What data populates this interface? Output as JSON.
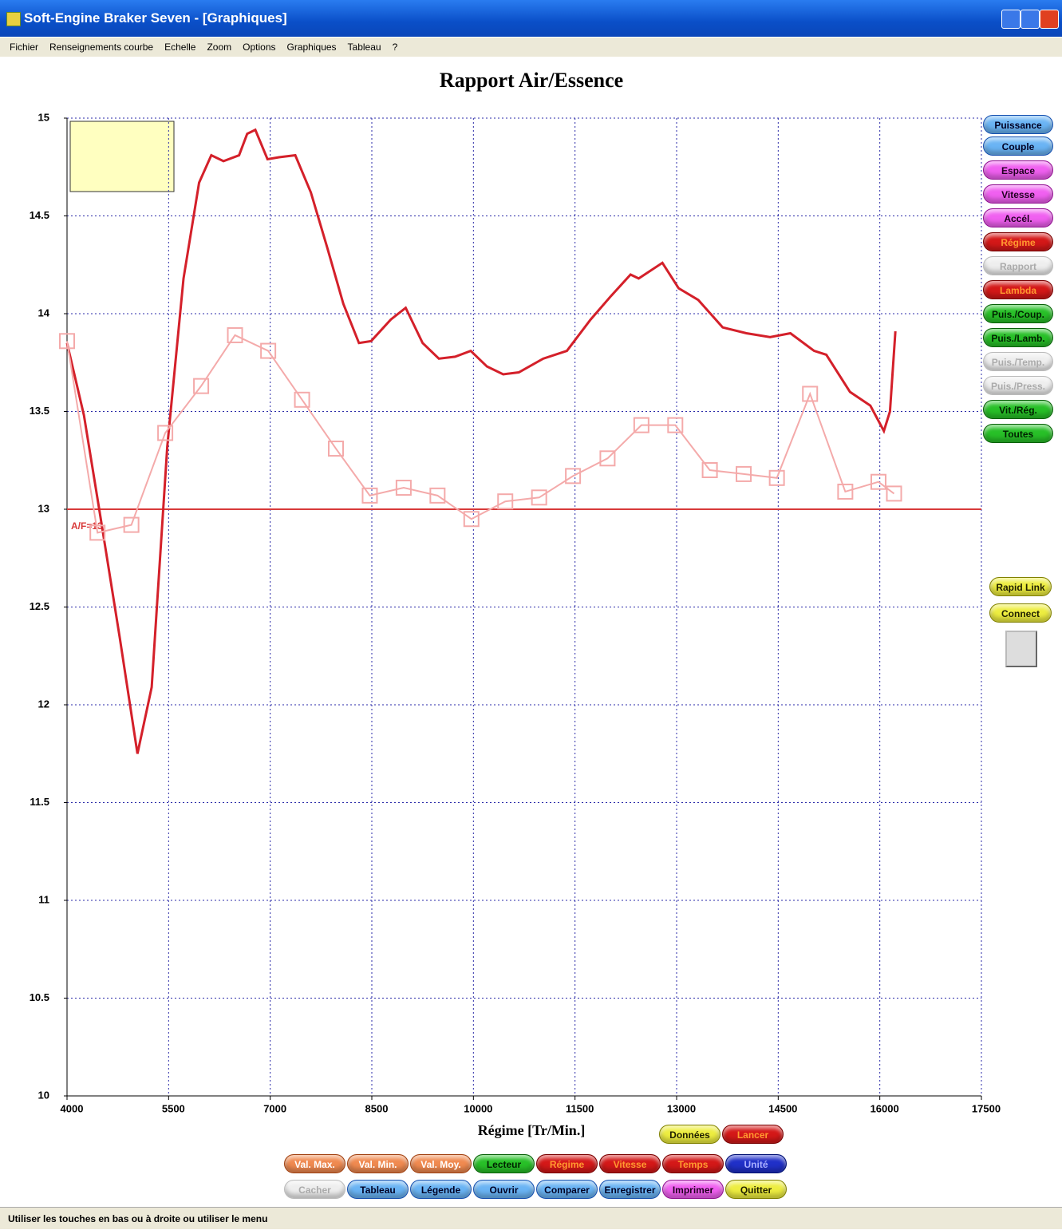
{
  "window": {
    "title": "Soft-Engine Braker Seven - [Graphiques]"
  },
  "menu": [
    "Fichier",
    "Renseignements courbe",
    "Echelle",
    "Zoom",
    "Options",
    "Graphiques",
    "Tableau",
    "?"
  ],
  "chart_data": {
    "type": "line",
    "title": "Rapport Air/Essence",
    "x_label": "Régime [Tr/Min.]",
    "xlim": [
      4000,
      17500
    ],
    "xticks": [
      4000,
      5500,
      7000,
      8500,
      10000,
      11500,
      13000,
      14500,
      16000,
      17500
    ],
    "ylim": [
      10,
      15
    ],
    "yticks": [
      10,
      10.5,
      11,
      11.5,
      12,
      12.5,
      13,
      13.5,
      14,
      14.5,
      15
    ],
    "grid": true,
    "reference": {
      "value": 13,
      "label": "A/F=13",
      "color": "#d83a3a"
    },
    "series": [
      {
        "color": "#d4202a",
        "marker": false,
        "x": [
          4000,
          4250,
          4480,
          4780,
          5040,
          5250,
          5480,
          5720,
          5950,
          6130,
          6310,
          6540,
          6660,
          6780,
          6960,
          7130,
          7370,
          7600,
          7840,
          8080,
          8310,
          8490,
          8780,
          9000,
          9250,
          9490,
          9730,
          9960,
          10200,
          10440,
          10670,
          11030,
          11380,
          11730,
          12030,
          12320,
          12440,
          12790,
          13030,
          13320,
          13680,
          14030,
          14380,
          14680,
          15030,
          15210,
          15560,
          15860,
          16060,
          16150,
          16230
        ],
        "values": [
          13.85,
          13.48,
          12.99,
          12.34,
          11.75,
          12.09,
          13.32,
          14.18,
          14.67,
          14.81,
          14.78,
          14.81,
          14.92,
          14.94,
          14.79,
          14.8,
          14.81,
          14.62,
          14.34,
          14.05,
          13.85,
          13.86,
          13.97,
          14.03,
          13.85,
          13.77,
          13.78,
          13.81,
          13.73,
          13.69,
          13.7,
          13.77,
          13.81,
          13.97,
          14.09,
          14.2,
          14.18,
          14.26,
          14.13,
          14.07,
          13.93,
          13.9,
          13.88,
          13.9,
          13.81,
          13.79,
          13.6,
          13.53,
          13.4,
          13.5,
          13.91
        ]
      },
      {
        "color": "#f4aaaa",
        "marker": true,
        "x": [
          4000,
          4450,
          4950,
          5450,
          5980,
          6480,
          6970,
          7470,
          7970,
          8470,
          8970,
          9470,
          9970,
          10470,
          10970,
          11470,
          11980,
          12480,
          12980,
          13490,
          13990,
          14480,
          14970,
          15490,
          15980,
          16210
        ],
        "values": [
          13.86,
          12.88,
          12.92,
          13.39,
          13.63,
          13.89,
          13.81,
          13.56,
          13.31,
          13.07,
          13.11,
          13.07,
          12.95,
          13.04,
          13.06,
          13.17,
          13.26,
          13.43,
          13.43,
          13.2,
          13.18,
          13.16,
          13.59,
          13.09,
          13.14,
          13.08
        ]
      }
    ]
  },
  "side_buttons": [
    {
      "label": "Puissance",
      "color": "blue"
    },
    {
      "label": "Couple",
      "color": "blue"
    },
    {
      "label": "Espace",
      "color": "magenta"
    },
    {
      "label": "Vitesse",
      "color": "magenta"
    },
    {
      "label": "Accél.",
      "color": "magenta"
    },
    {
      "label": "Régime",
      "color": "red"
    },
    {
      "label": "Rapport",
      "color": "grey"
    },
    {
      "label": "Lambda",
      "color": "red"
    },
    {
      "label": "Puis./Coup.",
      "color": "green"
    },
    {
      "label": "Puis./Lamb.",
      "color": "green"
    },
    {
      "label": "Puis./Temp.",
      "color": "grey"
    },
    {
      "label": "Puis./Press.",
      "color": "grey"
    },
    {
      "label": "Vit./Rég.",
      "color": "green"
    },
    {
      "label": "Toutes",
      "color": "green"
    }
  ],
  "link_buttons": [
    {
      "label": "Rapid Link",
      "color": "yellow"
    },
    {
      "label": "Connect",
      "color": "yellow"
    }
  ],
  "bottom_buttons": [
    [
      {
        "label": "Données",
        "color": "yellow"
      },
      {
        "label": "Lancer",
        "color": "red"
      }
    ],
    [
      {
        "label": "Val. Max.",
        "color": "orange"
      },
      {
        "label": "Val. Min.",
        "color": "orange"
      },
      {
        "label": "Val. Moy.",
        "color": "orange"
      },
      {
        "label": "Lecteur",
        "color": "green"
      },
      {
        "label": "Régime",
        "color": "red"
      },
      {
        "label": "Vitesse",
        "color": "red"
      },
      {
        "label": "Temps",
        "color": "red"
      },
      {
        "label": "Unité",
        "color": "navy"
      }
    ],
    [
      {
        "label": "Cacher",
        "color": "grey"
      },
      {
        "label": "Tableau",
        "color": "blue"
      },
      {
        "label": "Légende",
        "color": "blue"
      },
      {
        "label": "Ouvrir",
        "color": "blue"
      },
      {
        "label": "Comparer",
        "color": "blue"
      },
      {
        "label": "Enregistrer",
        "color": "blue"
      },
      {
        "label": "Imprimer",
        "color": "magenta"
      },
      {
        "label": "Quitter",
        "color": "yellow"
      }
    ]
  ],
  "status": "Utiliser les touches en bas ou à droite ou utiliser le menu"
}
